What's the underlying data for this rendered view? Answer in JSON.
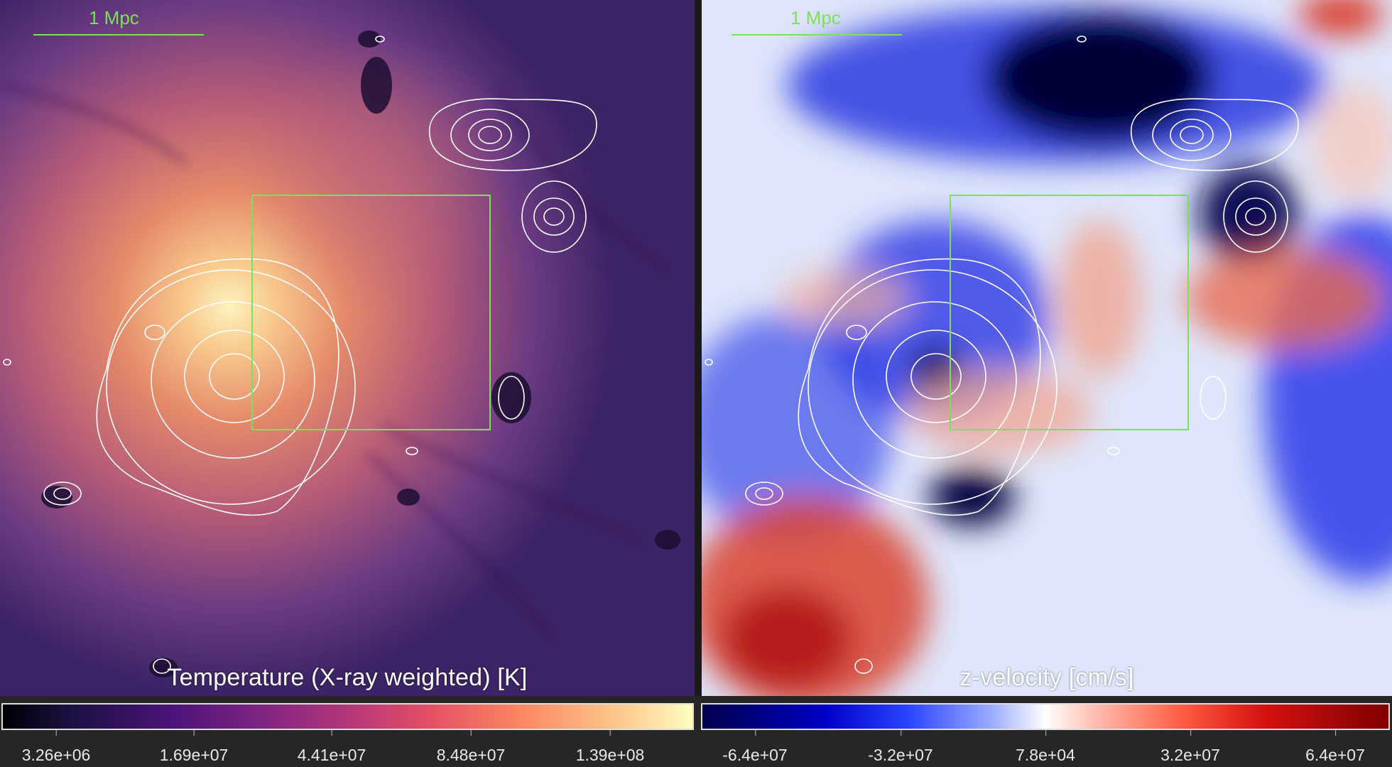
{
  "panels": {
    "left": {
      "title": "Temperature (X-ray weighted)  [K]",
      "scalebar_label": "1 Mpc",
      "colormap": "magma",
      "ticks": [
        "3.26e+06",
        "1.69e+07",
        "4.41e+07",
        "8.48e+07",
        "1.39e+08"
      ]
    },
    "right": {
      "title": "z-velocity [cm/s]",
      "scalebar_label": "1 Mpc",
      "colormap": "seismic (blue-white-red)",
      "ticks": [
        "-6.4e+07",
        "-3.2e+07",
        "7.8e+04",
        "3.2e+07",
        "6.4e+07"
      ]
    }
  },
  "colors": {
    "scalebar": "#7ee05a",
    "contour": "#ffffff",
    "box": "#7ee05a",
    "background": "#262626"
  }
}
